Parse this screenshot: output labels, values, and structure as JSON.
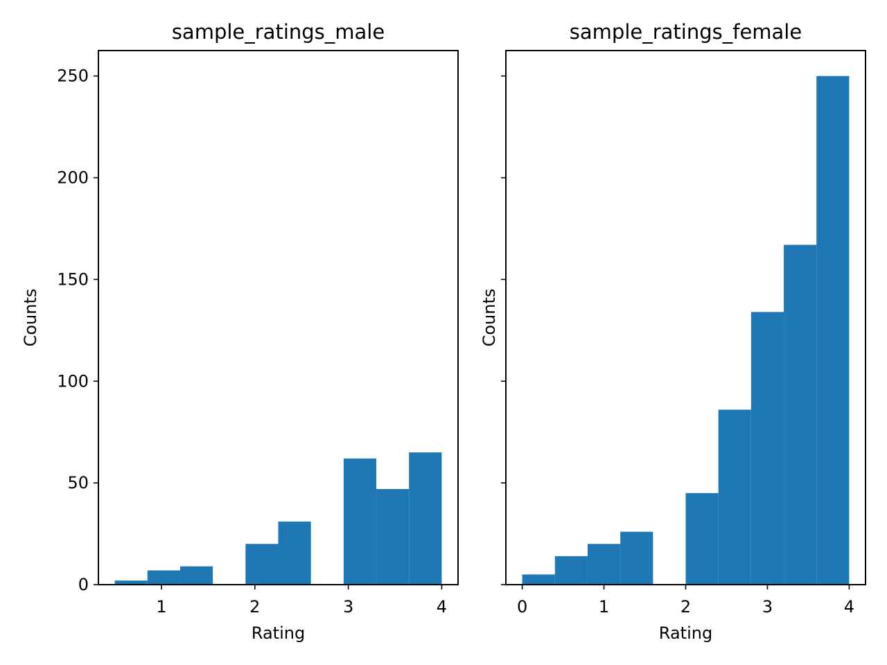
{
  "chart_data": [
    {
      "type": "bar",
      "title": "sample_ratings_male",
      "xlabel": "Rating",
      "ylabel": "Counts",
      "xlim": [
        0.325,
        4.175
      ],
      "ylim": [
        0,
        262.5
      ],
      "xticks": [
        "1",
        "2",
        "3",
        "4"
      ],
      "yticks": [
        "0",
        "50",
        "100",
        "150",
        "200",
        "250"
      ],
      "bin_edges": [
        0.5,
        0.85,
        1.2,
        1.55,
        1.9,
        2.25,
        2.6,
        2.95,
        3.3,
        3.65,
        4.0
      ],
      "values": [
        2,
        7,
        9,
        0,
        20,
        31,
        0,
        62,
        47,
        65
      ],
      "color": "#1f77b4",
      "grid": false,
      "legend": "none"
    },
    {
      "type": "bar",
      "title": "sample_ratings_female",
      "xlabel": "Rating",
      "ylabel": "Counts",
      "xlim": [
        -0.2,
        4.2
      ],
      "ylim": [
        0,
        262.5
      ],
      "xticks": [
        "0",
        "1",
        "2",
        "3",
        "4"
      ],
      "yticks": [
        "0",
        "50",
        "100",
        "150",
        "200",
        "250"
      ],
      "bin_edges": [
        0.0,
        0.4,
        0.8,
        1.2,
        1.6,
        2.0,
        2.4,
        2.8,
        3.2,
        3.6,
        4.0
      ],
      "values": [
        5,
        14,
        20,
        26,
        0,
        45,
        86,
        134,
        167,
        250
      ],
      "color": "#1f77b4",
      "grid": false,
      "legend": "none"
    }
  ]
}
